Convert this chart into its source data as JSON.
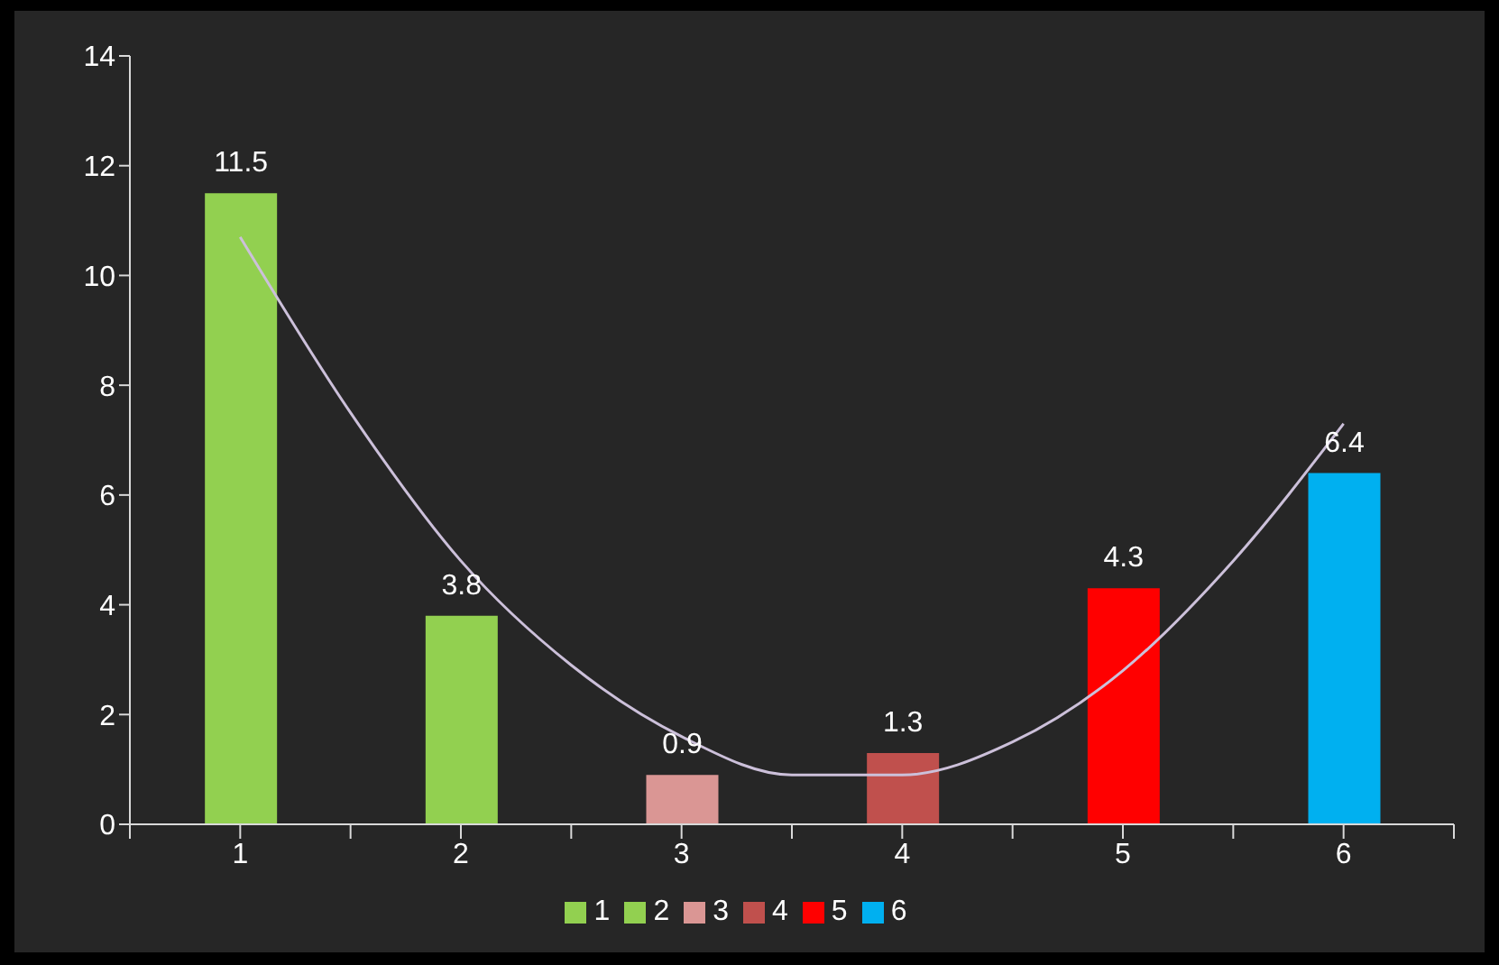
{
  "chart_data": {
    "type": "bar",
    "xlim": [
      0.5,
      6.5
    ],
    "xticks": [
      {
        "value": 0.5,
        "label": null
      },
      {
        "value": 1,
        "label": "1"
      },
      {
        "value": 1.5,
        "label": null
      },
      {
        "value": 2,
        "label": "2"
      },
      {
        "value": 2.5,
        "label": null
      },
      {
        "value": 3,
        "label": "3"
      },
      {
        "value": 3.5,
        "label": null
      },
      {
        "value": 4,
        "label": "4"
      },
      {
        "value": 4.5,
        "label": null
      },
      {
        "value": 5,
        "label": "5"
      },
      {
        "value": 5.5,
        "label": null
      },
      {
        "value": 6,
        "label": "6"
      },
      {
        "value": 6.5,
        "label": null
      }
    ],
    "ylim": [
      0,
      14
    ],
    "yticks": [
      0,
      2,
      4,
      6,
      8,
      10,
      12,
      14
    ],
    "legend": "bottom",
    "grid": false,
    "series": [
      {
        "name": "1",
        "color": "#92d050",
        "x": [
          1
        ],
        "values": [
          11.5
        ],
        "value_labels": [
          "11.5"
        ]
      },
      {
        "name": "2",
        "color": "#92d050",
        "x": [
          2
        ],
        "values": [
          3.8
        ],
        "value_labels": [
          "3.8"
        ]
      },
      {
        "name": "3",
        "color": "#da9694",
        "x": [
          3
        ],
        "values": [
          0.9
        ],
        "value_labels": [
          "0.9"
        ]
      },
      {
        "name": "4",
        "color": "#c0504d",
        "x": [
          4
        ],
        "values": [
          1.3
        ],
        "value_labels": [
          "1.3"
        ]
      },
      {
        "name": "5",
        "color": "#ff0000",
        "x": [
          5
        ],
        "values": [
          4.3
        ],
        "value_labels": [
          "4.3"
        ]
      },
      {
        "name": "6",
        "color": "#00b0f0",
        "x": [
          6
        ],
        "values": [
          6.4
        ],
        "value_labels": [
          "6.4"
        ]
      },
      {
        "type": "line",
        "color": "#ccc0da",
        "x": [
          1,
          1.5,
          2,
          2.5,
          3,
          3.5,
          4,
          4.5,
          5,
          5.5,
          6
        ],
        "values": [
          10.7,
          7.5,
          4.8,
          2.9,
          1.6,
          0.9,
          0.9,
          1.5,
          2.8,
          4.8,
          7.3
        ]
      }
    ]
  }
}
